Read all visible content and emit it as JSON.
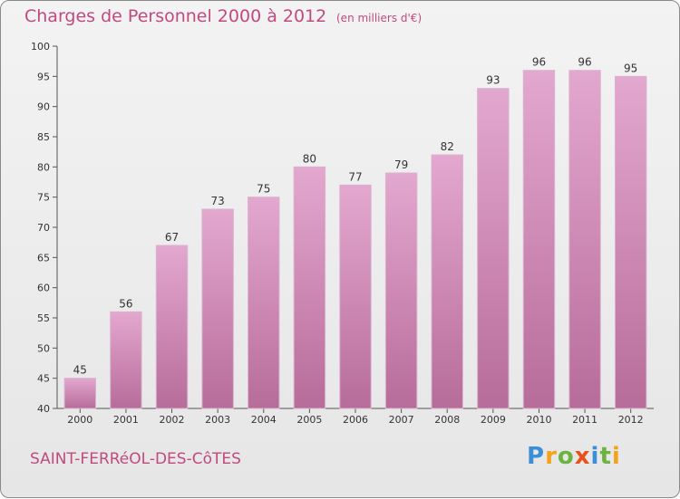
{
  "header": {
    "title": "Charges de Personnel 2000 à 2012",
    "unit": "(en milliers d'€)"
  },
  "footer": {
    "commune": "SAINT-FERRéOL-DES-CôTES",
    "logo_letters": [
      "P",
      "r",
      "o",
      "x",
      "i",
      "t",
      "i"
    ]
  },
  "colors": {
    "bar_top": "#e3a8cf",
    "bar_bottom": "#b76c99",
    "title": "#c04a80"
  },
  "chart_data": {
    "type": "bar",
    "title": "Charges de Personnel 2000 à 2012",
    "subtitle": "(en milliers d'€)",
    "categories": [
      "2000",
      "2001",
      "2002",
      "2003",
      "2004",
      "2005",
      "2006",
      "2007",
      "2008",
      "2009",
      "2010",
      "2011",
      "2012"
    ],
    "values": [
      45,
      56,
      67,
      73,
      75,
      80,
      77,
      79,
      82,
      93,
      96,
      96,
      95
    ],
    "ylim": [
      40,
      100
    ],
    "yticks": [
      40,
      45,
      50,
      55,
      60,
      65,
      70,
      75,
      80,
      85,
      90,
      95,
      100
    ],
    "grid": false,
    "legend": "none"
  }
}
